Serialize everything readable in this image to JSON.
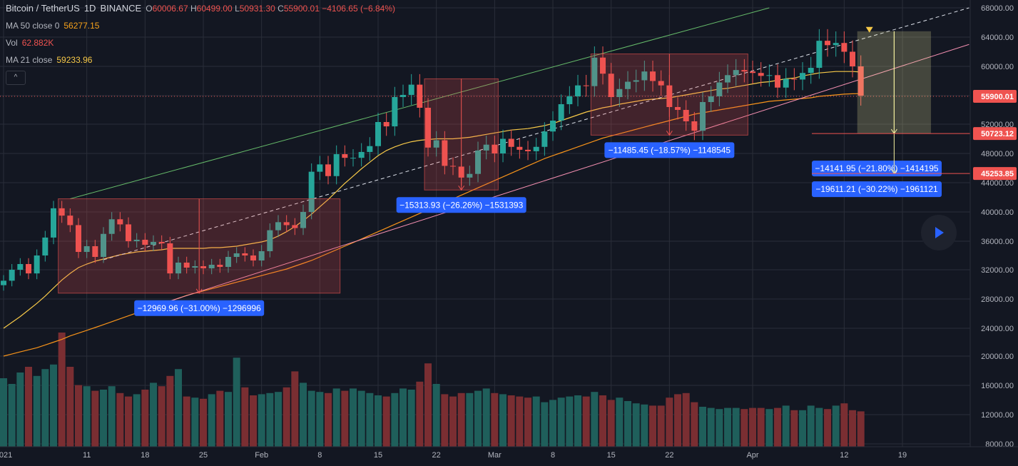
{
  "legend": {
    "symbol": "Bitcoin / TetherUS",
    "interval": "1D",
    "exchange": "BINANCE",
    "open_label": "O",
    "open": "60006.67",
    "high_label": "H",
    "high": "60499.00",
    "low_label": "L",
    "low": "50931.30",
    "close_label": "C",
    "close": "55900.01",
    "change": "−4106.65 (−6.84%)",
    "ma50_label": "MA 50 close 0",
    "ma50_value": "56277.15",
    "vol_label": "Vol",
    "vol_value": "62.882K",
    "ma21_label": "MA 21 close",
    "ma21_value": "59233.96",
    "collapse_glyph": "^"
  },
  "colors": {
    "background": "#131722",
    "grid": "#2a2e39",
    "up": "#26a69a",
    "down": "#ef5350",
    "vol_up": "#1f5f5b",
    "vol_down": "#7a2e32",
    "ma21": "#f7c948",
    "ma50": "#f7931a",
    "channel_upper": "#66bb6a",
    "channel_lower": "#f48fb1",
    "measure_box": "#ef5350",
    "measure_box_current": "#f7f3a0",
    "label_bg": "#2962ff",
    "price_tag": "#ef5350"
  },
  "chart_data": {
    "type": "candlestick",
    "symbol": "BTCUSDT",
    "interval": "1D",
    "start_date": "2021-01-01",
    "y_axis_scale": "log",
    "ylim": [
      8000,
      68000
    ],
    "y_ticks": [
      8000,
      12000,
      16000,
      20000,
      24000,
      28000,
      32000,
      36000,
      40000,
      44000,
      48000,
      52000,
      56000,
      60000,
      64000,
      68000
    ],
    "x_ticks": [
      {
        "label": "2021",
        "date": "2021-01-01"
      },
      {
        "label": "11",
        "date": "2021-01-11"
      },
      {
        "label": "18",
        "date": "2021-01-18"
      },
      {
        "label": "25",
        "date": "2021-01-25"
      },
      {
        "label": "Feb",
        "date": "2021-02-01"
      },
      {
        "label": "8",
        "date": "2021-02-08"
      },
      {
        "label": "15",
        "date": "2021-02-15"
      },
      {
        "label": "22",
        "date": "2021-02-22"
      },
      {
        "label": "Mar",
        "date": "2021-03-01"
      },
      {
        "label": "8",
        "date": "2021-03-08"
      },
      {
        "label": "15",
        "date": "2021-03-15"
      },
      {
        "label": "22",
        "date": "2021-03-22"
      },
      {
        "label": "Apr",
        "date": "2021-04-01"
      },
      {
        "label": "12",
        "date": "2021-04-12"
      },
      {
        "label": "19",
        "date": "2021-04-19"
      }
    ],
    "closes": [
      30500,
      32000,
      32800,
      31500,
      34000,
      36500,
      40500,
      39500,
      38200,
      34500,
      35300,
      33800,
      37000,
      39000,
      38300,
      36000,
      36200,
      35500,
      35900,
      35700,
      31500,
      33000,
      32300,
      32500,
      32200,
      32700,
      32400,
      33800,
      34300,
      34000,
      33300,
      34600,
      37500,
      38600,
      38200,
      37800,
      40000,
      45500,
      46500,
      44900,
      47900,
      47400,
      47400,
      48200,
      49000,
      52300,
      51700,
      55800,
      56100,
      57500,
      54300,
      48800,
      49800,
      46300,
      46200,
      44700,
      45200,
      48400,
      49200,
      48000,
      50000,
      48900,
      48500,
      48300,
      48900,
      51000,
      52500,
      54800,
      55900,
      57400,
      57300,
      61200,
      59000,
      55800,
      56900,
      57900,
      58100,
      59300,
      58000,
      57400,
      54400,
      54000,
      52400,
      51100,
      55100,
      55900,
      57800,
      58800,
      59500,
      59300,
      59100,
      58700,
      58800,
      57100,
      58300,
      58200,
      59100,
      59800,
      63500,
      62900,
      63200,
      62000,
      60000,
      56000
    ],
    "change_pct_rule": "green if close >= previous close, red otherwise",
    "volume_scale_note": "volume shown on a separate overlay pane (relative values)",
    "volumes": [
      60,
      55,
      65,
      70,
      62,
      68,
      72,
      100,
      70,
      54,
      53,
      49,
      50,
      53,
      47,
      44,
      46,
      50,
      56,
      53,
      62,
      68,
      44,
      43,
      42,
      46,
      49,
      48,
      78,
      52,
      45,
      46,
      47,
      48,
      52,
      66,
      56,
      49,
      48,
      47,
      51,
      49,
      51,
      49,
      47,
      45,
      44,
      47,
      51,
      50,
      57,
      73,
      55,
      46,
      44,
      47,
      47,
      49,
      51,
      47,
      46,
      45,
      44,
      43,
      44,
      39,
      41,
      43,
      44,
      45,
      44,
      48,
      45,
      41,
      43,
      40,
      38,
      37,
      36,
      36,
      43,
      46,
      47,
      39,
      35,
      34,
      33,
      34,
      34,
      33,
      34,
      34,
      33,
      34,
      36,
      32,
      32,
      36,
      34,
      33,
      36,
      38,
      32,
      31
    ],
    "ma21": [
      24000,
      24800,
      25600,
      26500,
      27400,
      28400,
      29500,
      30600,
      31500,
      32300,
      32800,
      33200,
      33500,
      33800,
      34100,
      34300,
      34500,
      34600,
      34700,
      34800,
      35000,
      35000,
      35000,
      35000,
      35000,
      35100,
      35100,
      35200,
      35300,
      35500,
      35700,
      35900,
      36200,
      36700,
      37300,
      38000,
      38800,
      39700,
      40700,
      41700,
      42800,
      43900,
      44900,
      45900,
      46800,
      47700,
      48400,
      48900,
      49300,
      49600,
      49800,
      49900,
      50000,
      50000,
      50000,
      50100,
      50200,
      50400,
      50600,
      50800,
      51000,
      51200,
      51300,
      51400,
      51600,
      51800,
      52100,
      52500,
      52900,
      53300,
      53700,
      54000,
      54300,
      54500,
      54800,
      55000,
      55200,
      55400,
      55500,
      55600,
      55700,
      55900,
      56100,
      56300,
      56500,
      56700,
      56900,
      57000,
      57200,
      57400,
      57600,
      57800,
      57900,
      58100,
      58300,
      58400,
      58700,
      58900,
      59100,
      59200,
      59300,
      59300,
      59300,
      59233.96
    ],
    "ma50": [
      20000,
      20300,
      20600,
      20900,
      21200,
      21600,
      22000,
      22400,
      22900,
      23300,
      23700,
      24100,
      24500,
      24900,
      25300,
      25700,
      26100,
      26500,
      26900,
      27300,
      27700,
      28100,
      28500,
      28800,
      29100,
      29400,
      29700,
      30000,
      30300,
      30600,
      30900,
      31200,
      31500,
      31800,
      32100,
      32500,
      32900,
      33300,
      33800,
      34300,
      34800,
      35300,
      35800,
      36300,
      36800,
      37300,
      37800,
      38300,
      38800,
      39300,
      39800,
      40300,
      40800,
      41300,
      41800,
      42300,
      42800,
      43300,
      43800,
      44300,
      44800,
      45300,
      45800,
      46300,
      46800,
      47300,
      47700,
      48100,
      48500,
      48900,
      49300,
      49700,
      50100,
      50400,
      50700,
      51000,
      51300,
      51600,
      51900,
      52200,
      52500,
      52800,
      53100,
      53400,
      53600,
      53800,
      54000,
      54200,
      54400,
      54600,
      54800,
      55000,
      55200,
      55300,
      55400,
      55500,
      55600,
      55700,
      55900,
      56000,
      56100,
      56200,
      56250,
      56277.15
    ],
    "current_price": 55900.01,
    "price_tags": [
      {
        "label": "55900.01",
        "value": 55900.01,
        "style": "filled"
      },
      {
        "label": "50723.12",
        "value": 50723.12,
        "style": "line"
      },
      {
        "label": "45253.85",
        "value": 45253.85,
        "style": "line"
      }
    ],
    "measurements": [
      {
        "label": "−12969.96 (−31.00%) −1296996",
        "from_date": "2021-01-08",
        "to_date": "2021-02-10",
        "high": 41800,
        "low": 28800
      },
      {
        "label": "−15313.93 (−26.26%) −1531393",
        "from_date": "2021-02-21",
        "to_date": "2021-03-01",
        "high": 58300,
        "low": 43000
      },
      {
        "label": "−11485.45 (−18.57%) −1148545",
        "from_date": "2021-03-13",
        "to_date": "2021-03-31",
        "high": 61700,
        "low": 50500
      },
      {
        "label": "−14141.95 (−21.80%) −1414195",
        "from_date": "2021-04-14",
        "to_date": "2021-04-22",
        "high": 64800,
        "low": 50723.12,
        "current": true
      },
      {
        "label": "−19611.21 (−30.22%) −1961121",
        "from_date": "2021-04-14",
        "to_date": "2021-04-22",
        "high": 64800,
        "low": 45253.85,
        "current": true
      }
    ]
  }
}
